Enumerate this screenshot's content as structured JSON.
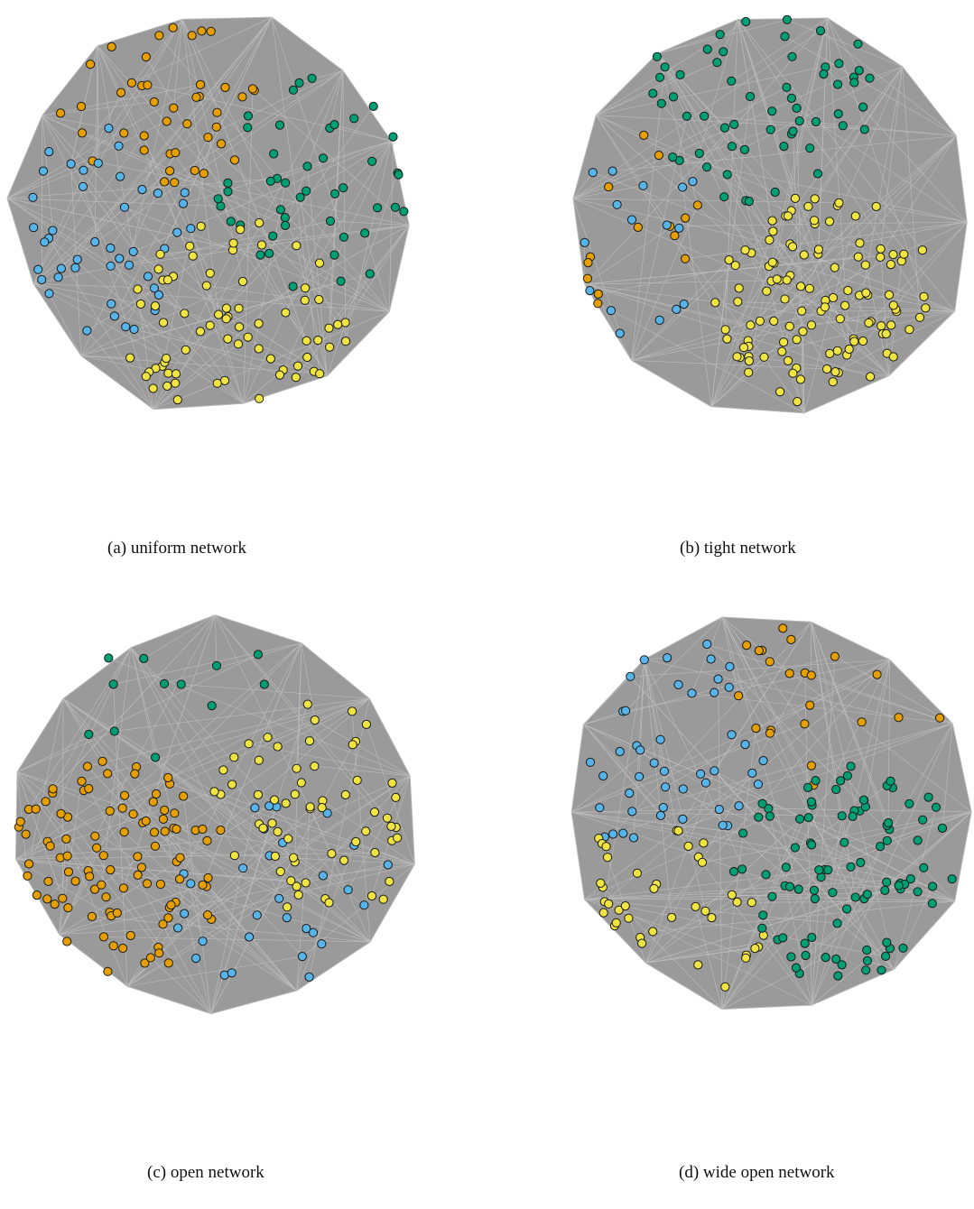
{
  "panels": [
    {
      "id": "a",
      "caption": "(a) uniform network",
      "groups": [
        {
          "color": "orange",
          "count": 42
        },
        {
          "color": "green",
          "count": 46
        },
        {
          "color": "blue",
          "count": 44
        },
        {
          "color": "yellow",
          "count": 72
        }
      ]
    },
    {
      "id": "b",
      "caption": "(b) tight network",
      "groups": [
        {
          "color": "green",
          "count": 58
        },
        {
          "color": "orange",
          "count": 14
        },
        {
          "color": "blue",
          "count": 16
        },
        {
          "color": "yellow",
          "count": 116
        }
      ]
    },
    {
      "id": "c",
      "caption": "(c) open network",
      "groups": [
        {
          "color": "green",
          "count": 12
        },
        {
          "color": "blue",
          "count": 30
        },
        {
          "color": "yellow",
          "count": 62
        },
        {
          "color": "orange",
          "count": 100
        }
      ]
    },
    {
      "id": "d",
      "caption": "(d) wide open network",
      "groups": [
        {
          "color": "blue",
          "count": 46
        },
        {
          "color": "orange",
          "count": 22
        },
        {
          "color": "yellow",
          "count": 40
        },
        {
          "color": "green",
          "count": 96
        }
      ]
    }
  ],
  "colors": {
    "orange": "#e69f00",
    "green": "#009e73",
    "blue": "#56b4e9",
    "yellow": "#f0e442",
    "edge": "#9a9a9a",
    "node_stroke": "#1a1a1a"
  }
}
